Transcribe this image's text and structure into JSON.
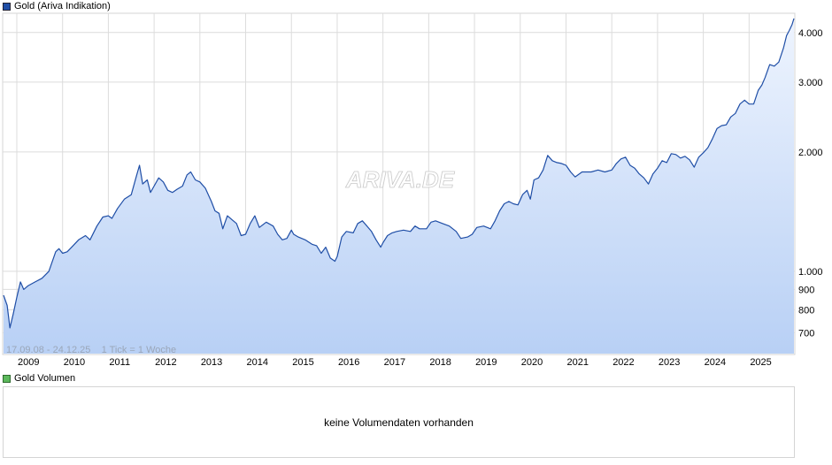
{
  "main_chart": {
    "legend_label": "Gold (Ariva Indikation)",
    "legend_color": "#1f4ea6",
    "watermark": "ARIVA.DE",
    "footer_info": "17.09.08 - 24.12.25    1 Tick = 1 Woche"
  },
  "volume_chart": {
    "legend_label": "Gold Volumen",
    "legend_color": "#5cb85c",
    "message": "keine Volumendaten vorhanden"
  },
  "chart_data": {
    "type": "area",
    "title": "Gold (Ariva Indikation)",
    "scale": "log",
    "line_color": "#1f4ea6",
    "fill_top_color": "#eef4fe",
    "fill_bottom_color": "#b8d0f5",
    "grid": true,
    "x_range": [
      2008.71,
      2025.98
    ],
    "ylim": [
      620,
      4450
    ],
    "y_ticks": [
      {
        "value": 700,
        "label": "700"
      },
      {
        "value": 800,
        "label": "800"
      },
      {
        "value": 900,
        "label": "900"
      },
      {
        "value": 1000,
        "label": "1.000"
      },
      {
        "value": 2000,
        "label": "2.000"
      },
      {
        "value": 3000,
        "label": "3.000"
      },
      {
        "value": 4000,
        "label": "4.000"
      }
    ],
    "x_ticks": [
      {
        "value": 2009,
        "label": "2009"
      },
      {
        "value": 2010,
        "label": "2010"
      },
      {
        "value": 2011,
        "label": "2011"
      },
      {
        "value": 2012,
        "label": "2012"
      },
      {
        "value": 2013,
        "label": "2013"
      },
      {
        "value": 2014,
        "label": "2014"
      },
      {
        "value": 2015,
        "label": "2015"
      },
      {
        "value": 2016,
        "label": "2016"
      },
      {
        "value": 2017,
        "label": "2017"
      },
      {
        "value": 2018,
        "label": "2018"
      },
      {
        "value": 2019,
        "label": "2019"
      },
      {
        "value": 2020,
        "label": "2020"
      },
      {
        "value": 2021,
        "label": "2021"
      },
      {
        "value": 2022,
        "label": "2022"
      },
      {
        "value": 2023,
        "label": "2023"
      },
      {
        "value": 2024,
        "label": "2024"
      },
      {
        "value": 2025,
        "label": "2025"
      }
    ],
    "series": [
      {
        "name": "Gold (Ariva Indikation)",
        "x": [
          2008.71,
          2008.79,
          2008.85,
          2008.92,
          2009.0,
          2009.08,
          2009.15,
          2009.25,
          2009.4,
          2009.55,
          2009.7,
          2009.85,
          2009.92,
          2010.0,
          2010.1,
          2010.2,
          2010.35,
          2010.5,
          2010.6,
          2010.75,
          2010.88,
          2011.0,
          2011.08,
          2011.2,
          2011.35,
          2011.5,
          2011.62,
          2011.68,
          2011.75,
          2011.85,
          2011.92,
          2012.0,
          2012.1,
          2012.2,
          2012.3,
          2012.4,
          2012.5,
          2012.62,
          2012.72,
          2012.8,
          2012.9,
          2013.0,
          2013.12,
          2013.25,
          2013.33,
          2013.42,
          2013.5,
          2013.6,
          2013.7,
          2013.8,
          2013.9,
          2014.0,
          2014.1,
          2014.2,
          2014.3,
          2014.45,
          2014.6,
          2014.7,
          2014.8,
          2014.9,
          2015.0,
          2015.05,
          2015.15,
          2015.3,
          2015.45,
          2015.55,
          2015.65,
          2015.75,
          2015.85,
          2015.95,
          2016.0,
          2016.1,
          2016.2,
          2016.35,
          2016.45,
          2016.55,
          2016.65,
          2016.75,
          2016.85,
          2016.95,
          2017.0,
          2017.1,
          2017.2,
          2017.3,
          2017.45,
          2017.6,
          2017.7,
          2017.8,
          2017.95,
          2018.05,
          2018.15,
          2018.3,
          2018.45,
          2018.6,
          2018.7,
          2018.85,
          2018.95,
          2019.05,
          2019.2,
          2019.35,
          2019.45,
          2019.55,
          2019.65,
          2019.75,
          2019.85,
          2019.95,
          2020.05,
          2020.15,
          2020.22,
          2020.3,
          2020.4,
          2020.5,
          2020.55,
          2020.6,
          2020.7,
          2020.8,
          2020.9,
          2021.0,
          2021.1,
          2021.2,
          2021.35,
          2021.45,
          2021.55,
          2021.7,
          2021.85,
          2022.0,
          2022.1,
          2022.2,
          2022.3,
          2022.4,
          2022.5,
          2022.6,
          2022.7,
          2022.8,
          2022.9,
          2023.0,
          2023.1,
          2023.2,
          2023.3,
          2023.4,
          2023.5,
          2023.6,
          2023.7,
          2023.8,
          2023.9,
          2024.0,
          2024.1,
          2024.2,
          2024.3,
          2024.4,
          2024.5,
          2024.6,
          2024.7,
          2024.8,
          2024.9,
          2025.0,
          2025.1,
          2025.2,
          2025.28,
          2025.35,
          2025.45,
          2025.55,
          2025.65,
          2025.75,
          2025.82,
          2025.88,
          2025.94,
          2025.98
        ],
        "values": [
          870,
          820,
          720,
          780,
          860,
          940,
          900,
          920,
          940,
          960,
          1000,
          1120,
          1140,
          1110,
          1120,
          1150,
          1200,
          1230,
          1200,
          1300,
          1370,
          1380,
          1360,
          1440,
          1520,
          1560,
          1750,
          1850,
          1660,
          1700,
          1580,
          1640,
          1720,
          1680,
          1600,
          1580,
          1610,
          1640,
          1750,
          1780,
          1700,
          1680,
          1620,
          1500,
          1420,
          1400,
          1280,
          1380,
          1350,
          1320,
          1230,
          1240,
          1320,
          1380,
          1290,
          1330,
          1300,
          1240,
          1200,
          1210,
          1270,
          1240,
          1220,
          1200,
          1170,
          1160,
          1110,
          1150,
          1080,
          1060,
          1090,
          1220,
          1260,
          1250,
          1320,
          1340,
          1300,
          1260,
          1200,
          1150,
          1180,
          1230,
          1250,
          1260,
          1270,
          1260,
          1300,
          1280,
          1280,
          1330,
          1340,
          1320,
          1300,
          1260,
          1210,
          1220,
          1240,
          1290,
          1300,
          1280,
          1340,
          1420,
          1480,
          1500,
          1480,
          1470,
          1560,
          1600,
          1520,
          1700,
          1720,
          1800,
          1880,
          1960,
          1900,
          1880,
          1870,
          1850,
          1780,
          1730,
          1780,
          1780,
          1780,
          1800,
          1780,
          1800,
          1870,
          1920,
          1940,
          1850,
          1820,
          1760,
          1720,
          1660,
          1760,
          1820,
          1900,
          1880,
          1980,
          1970,
          1930,
          1950,
          1910,
          1830,
          1940,
          1990,
          2050,
          2160,
          2290,
          2330,
          2340,
          2450,
          2500,
          2640,
          2700,
          2640,
          2640,
          2860,
          2950,
          3080,
          3320,
          3290,
          3370,
          3650,
          3930,
          4050,
          4190,
          4340
        ]
      }
    ]
  }
}
